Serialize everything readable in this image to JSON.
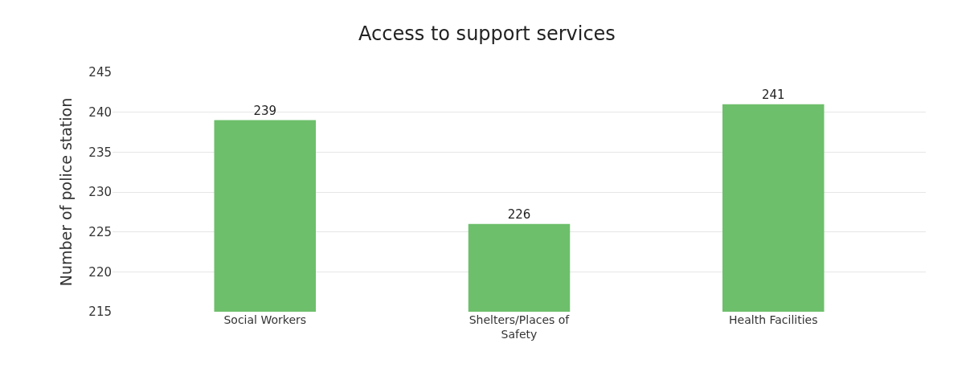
{
  "chart_data": {
    "type": "bar",
    "title": "Access to support services",
    "ylabel": "Number of police station",
    "categories": [
      "Social Workers",
      "Shelters/Places of Safety",
      "Health Facilities"
    ],
    "values": [
      239,
      226,
      241
    ],
    "color": "#6dbf6b",
    "ylim": [
      215,
      245
    ],
    "yticks": [
      215,
      220,
      225,
      230,
      235,
      240,
      245
    ],
    "grid": "y",
    "data_labels": true
  }
}
